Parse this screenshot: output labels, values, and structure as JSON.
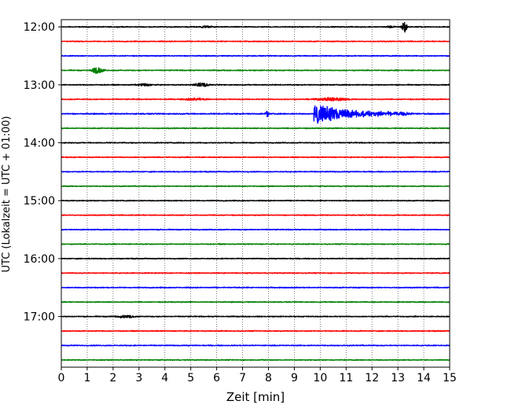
{
  "chart_data": {
    "type": "line",
    "subtype": "helicorder",
    "title": "",
    "xlabel": "Zeit  [min]",
    "ylabel": "UTC (Lokalzeit = UTC + 01:00)",
    "xlim": [
      0,
      15
    ],
    "x_ticks": [
      "0",
      "1",
      "2",
      "3",
      "4",
      "5",
      "6",
      "7",
      "8",
      "9",
      "10",
      "11",
      "12",
      "13",
      "14",
      "15"
    ],
    "y_tick_labels": [
      "12:00",
      "13:00",
      "14:00",
      "15:00",
      "16:00",
      "17:00"
    ],
    "trace_interval_minutes": 15,
    "grid": "vertical-dotted",
    "trace_colors": [
      "#000000",
      "#ff0000",
      "#0000ff",
      "#008000"
    ],
    "series": [
      {
        "start": "12:00",
        "color": "#000000",
        "noise": 0.5,
        "events": [
          {
            "t": 5.6,
            "amp": 1.2,
            "dur": 1.2,
            "type": "swell"
          },
          {
            "t": 12.7,
            "amp": 1.2,
            "dur": 0.8,
            "type": "swell"
          },
          {
            "t": 13.25,
            "amp": 8,
            "dur": 0.15,
            "type": "spike"
          }
        ]
      },
      {
        "start": "12:15",
        "color": "#ff0000",
        "noise": 0.5,
        "events": []
      },
      {
        "start": "12:30",
        "color": "#0000ff",
        "noise": 0.5,
        "events": []
      },
      {
        "start": "12:45",
        "color": "#008000",
        "noise": 0.5,
        "events": [
          {
            "t": 1.4,
            "amp": 4,
            "dur": 0.8,
            "type": "swell"
          }
        ]
      },
      {
        "start": "13:00",
        "color": "#000000",
        "noise": 0.5,
        "events": [
          {
            "t": 3.2,
            "amp": 1.5,
            "dur": 1.2,
            "type": "swell"
          },
          {
            "t": 5.4,
            "amp": 2.5,
            "dur": 1.0,
            "type": "swell"
          }
        ]
      },
      {
        "start": "13:15",
        "color": "#ff0000",
        "noise": 0.5,
        "events": [
          {
            "t": 5.2,
            "amp": 1.5,
            "dur": 1.8,
            "type": "swell"
          },
          {
            "t": 10.5,
            "amp": 2,
            "dur": 2.5,
            "type": "swell"
          }
        ]
      },
      {
        "start": "13:30",
        "color": "#0000ff",
        "noise": 0.6,
        "events": [
          {
            "t": 7.95,
            "amp": 4,
            "dur": 0.12,
            "type": "spike"
          },
          {
            "t": 9.75,
            "amp": 15,
            "dur": 4.5,
            "type": "quake"
          }
        ]
      },
      {
        "start": "13:45",
        "color": "#008000",
        "noise": 0.5,
        "events": []
      },
      {
        "start": "14:00",
        "color": "#000000",
        "noise": 0.5,
        "events": []
      },
      {
        "start": "14:15",
        "color": "#ff0000",
        "noise": 0.5,
        "events": []
      },
      {
        "start": "14:30",
        "color": "#0000ff",
        "noise": 0.5,
        "events": []
      },
      {
        "start": "14:45",
        "color": "#008000",
        "noise": 0.5,
        "events": []
      },
      {
        "start": "15:00",
        "color": "#000000",
        "noise": 0.5,
        "events": []
      },
      {
        "start": "15:15",
        "color": "#ff0000",
        "noise": 0.5,
        "events": []
      },
      {
        "start": "15:30",
        "color": "#0000ff",
        "noise": 0.5,
        "events": []
      },
      {
        "start": "15:45",
        "color": "#008000",
        "noise": 0.5,
        "events": []
      },
      {
        "start": "16:00",
        "color": "#000000",
        "noise": 0.5,
        "events": []
      },
      {
        "start": "16:15",
        "color": "#ff0000",
        "noise": 0.5,
        "events": []
      },
      {
        "start": "16:30",
        "color": "#0000ff",
        "noise": 0.5,
        "events": []
      },
      {
        "start": "16:45",
        "color": "#008000",
        "noise": 0.5,
        "events": []
      },
      {
        "start": "17:00",
        "color": "#000000",
        "noise": 0.5,
        "events": [
          {
            "t": 2.5,
            "amp": 1.5,
            "dur": 1.6,
            "type": "swell"
          }
        ]
      },
      {
        "start": "17:15",
        "color": "#ff0000",
        "noise": 0.5,
        "events": []
      },
      {
        "start": "17:30",
        "color": "#0000ff",
        "noise": 0.5,
        "events": []
      },
      {
        "start": "17:45",
        "color": "#008000",
        "noise": 0.5,
        "events": []
      }
    ]
  }
}
